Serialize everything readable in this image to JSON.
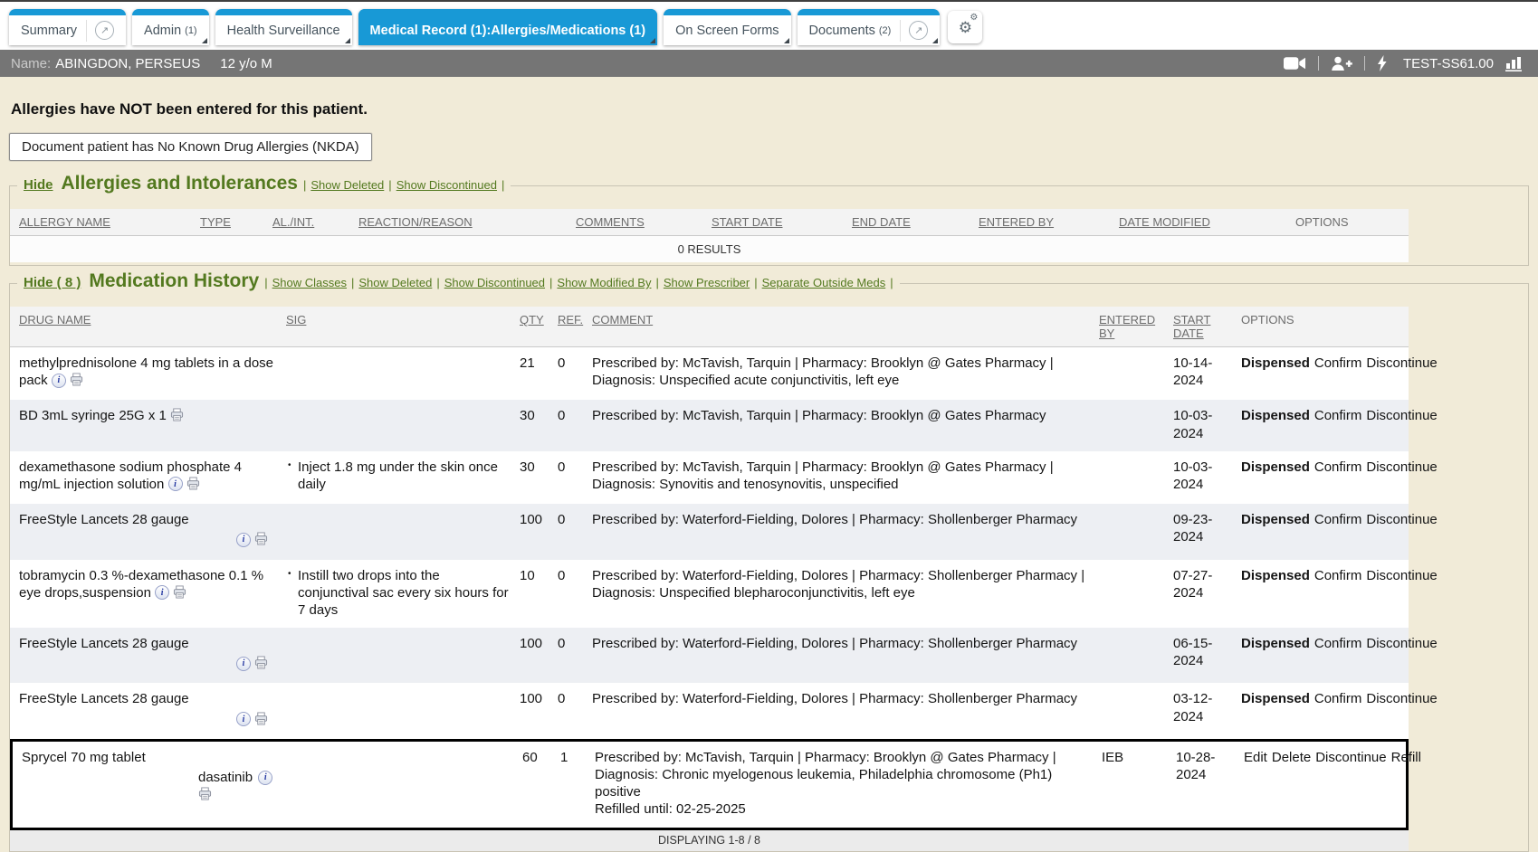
{
  "sep": "|",
  "colors": {
    "accent_blue": "#1899d6",
    "olive_green": "#53791f",
    "page_background": "#f1ebd8",
    "patient_bar_gray": "#757575",
    "highlight_border": "#000000"
  },
  "icons": {
    "tab_external": "open-in-new-window",
    "settings": "gear",
    "patient_bar": [
      "video-camera",
      "add-person",
      "lightning-bolt",
      "bar-chart"
    ],
    "row_icons": [
      "drug-info",
      "print"
    ]
  },
  "tabs": [
    {
      "label": "Summary",
      "external": true
    },
    {
      "label": "Admin",
      "count": "(1)",
      "dropdown": true
    },
    {
      "label": "Health Surveillance",
      "dropdown": true
    },
    {
      "label": "Medical Record (1):Allergies/Medications (1)",
      "active": true,
      "dropdown": true
    },
    {
      "label": "On Screen Forms",
      "dropdown": true
    },
    {
      "label": "Documents",
      "count": "(2)",
      "external": true,
      "dropdown": true
    }
  ],
  "patient": {
    "name_label": "Name:",
    "name": "ABINGDON, PERSEUS",
    "age_sex": "12 y/o M",
    "station": "TEST-SS61.00"
  },
  "allergies": {
    "notice": "Allergies have NOT been entered for this patient.",
    "nkda_button": "Document patient has No Known Drug Allergies (NKDA)",
    "hide_label": "Hide",
    "title": "Allergies and Intolerances",
    "links": [
      "Show Deleted",
      "Show Discontinued"
    ],
    "columns": [
      "ALLERGY NAME",
      "TYPE",
      "AL./INT.",
      "REACTION/REASON",
      "COMMENTS",
      "START DATE",
      "END DATE",
      "ENTERED BY",
      "DATE MODIFIED",
      "OPTIONS"
    ],
    "empty_text": "0 RESULTS"
  },
  "medications": {
    "hide_label": "Hide ( 8 )",
    "title": "Medication History",
    "links": [
      "Show Classes",
      "Show Deleted",
      "Show Discontinued",
      "Show Modified By",
      "Show Prescriber",
      "Separate Outside Meds"
    ],
    "columns": [
      "DRUG NAME",
      "SIG",
      "QTY",
      "REF.",
      "COMMENT",
      "ENTERED BY",
      "START DATE",
      "OPTIONS"
    ],
    "footer": "DISPLAYING 1-8 / 8",
    "rows": [
      {
        "drug": "methylprednisolone 4 mg tablets in a dose pack",
        "icons": "inline",
        "info": true,
        "print": true,
        "sig": "",
        "qty": "21",
        "ref": "0",
        "comment": "Prescribed by: McTavish, Tarquin | Pharmacy: Brooklyn @ Gates Pharmacy | Diagnosis: Unspecified acute conjunctivitis, left eye",
        "comment2": "",
        "entered_by": "",
        "start_date": "10-14-2024",
        "status": "Dispensed",
        "actions": [
          "Confirm",
          "Discontinue"
        ],
        "highlighted": false
      },
      {
        "drug": "BD 3mL syringe 25G x 1",
        "icons": "inline",
        "info": false,
        "print": true,
        "sig": "",
        "qty": "30",
        "ref": "0",
        "comment": "Prescribed by: McTavish, Tarquin | Pharmacy: Brooklyn @ Gates Pharmacy",
        "comment2": "",
        "entered_by": "",
        "start_date": "10-03-2024",
        "status": "Dispensed",
        "actions": [
          "Confirm",
          "Discontinue"
        ],
        "highlighted": false
      },
      {
        "drug": "dexamethasone sodium phosphate 4 mg/mL injection solution",
        "icons": "inline",
        "info": true,
        "print": true,
        "sig": "Inject 1.8 mg under the skin once daily",
        "qty": "30",
        "ref": "0",
        "comment": "Prescribed by: McTavish, Tarquin | Pharmacy: Brooklyn @ Gates Pharmacy | Diagnosis: Synovitis and tenosynovitis, unspecified",
        "comment2": "",
        "entered_by": "",
        "start_date": "10-03-2024",
        "status": "Dispensed",
        "actions": [
          "Confirm",
          "Discontinue"
        ],
        "highlighted": false
      },
      {
        "drug": "FreeStyle Lancets 28 gauge",
        "icons": "below",
        "info": true,
        "print": true,
        "sig": "",
        "qty": "100",
        "ref": "0",
        "comment": "Prescribed by: Waterford-Fielding, Dolores | Pharmacy: Shollenberger Pharmacy",
        "comment2": "",
        "entered_by": "",
        "start_date": "09-23-2024",
        "status": "Dispensed",
        "actions": [
          "Confirm",
          "Discontinue"
        ],
        "highlighted": false
      },
      {
        "drug": "tobramycin 0.3 %-dexamethasone 0.1 % eye drops,suspension",
        "icons": "inline",
        "info": true,
        "print": true,
        "sig": "Instill two drops into the conjunctival sac every six hours for 7 days",
        "qty": "10",
        "ref": "0",
        "comment": "Prescribed by: Waterford-Fielding, Dolores | Pharmacy: Shollenberger Pharmacy | Diagnosis: Unspecified blepharoconjunctivitis, left eye",
        "comment2": "",
        "entered_by": "",
        "start_date": "07-27-2024",
        "status": "Dispensed",
        "actions": [
          "Confirm",
          "Discontinue"
        ],
        "highlighted": false
      },
      {
        "drug": "FreeStyle Lancets 28 gauge",
        "icons": "below",
        "info": true,
        "print": true,
        "sig": "",
        "qty": "100",
        "ref": "0",
        "comment": "Prescribed by: Waterford-Fielding, Dolores | Pharmacy: Shollenberger Pharmacy",
        "comment2": "",
        "entered_by": "",
        "start_date": "06-15-2024",
        "status": "Dispensed",
        "actions": [
          "Confirm",
          "Discontinue"
        ],
        "highlighted": false
      },
      {
        "drug": "FreeStyle Lancets 28 gauge",
        "icons": "below",
        "info": true,
        "print": true,
        "sig": "",
        "qty": "100",
        "ref": "0",
        "comment": "Prescribed by: Waterford-Fielding, Dolores | Pharmacy: Shollenberger Pharmacy",
        "comment2": "",
        "entered_by": "",
        "start_date": "03-12-2024",
        "status": "Dispensed",
        "actions": [
          "Confirm",
          "Discontinue"
        ],
        "highlighted": false
      },
      {
        "drug": "Sprycel 70 mg tablet",
        "generic": "dasatinib",
        "icons": "below",
        "info": true,
        "print": true,
        "sig": "",
        "qty": "60",
        "ref": "1",
        "comment": "Prescribed by: McTavish, Tarquin | Pharmacy: Brooklyn @ Gates Pharmacy | Diagnosis: Chronic myelogenous leukemia, Philadelphia chromosome (Ph1) positive",
        "comment2": "Refilled until: 02-25-2025",
        "entered_by": "IEB",
        "start_date": "10-28-2024",
        "status": "",
        "actions": [
          "Edit",
          "Delete",
          "Discontinue",
          "Refill"
        ],
        "highlighted": true
      }
    ]
  }
}
